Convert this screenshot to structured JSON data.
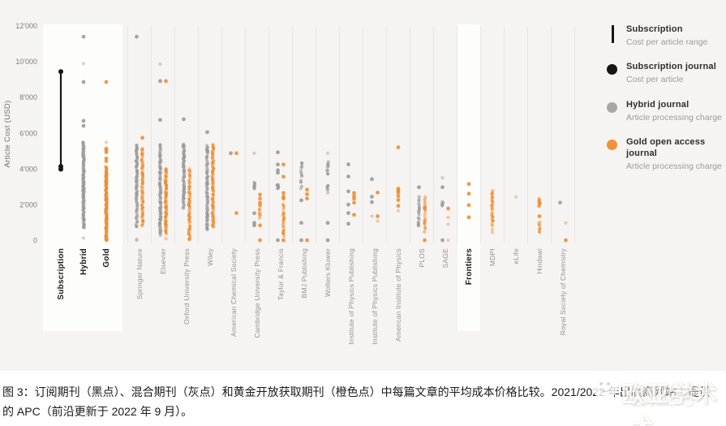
{
  "colors": {
    "background": "#f5f4f2",
    "band": "#fdfdfc",
    "gridline": "#e8e6e3",
    "black": "#151515",
    "gray": "#9b9896",
    "orange": "#ee8c2f",
    "axis_text": "#7c7c7c",
    "label_gray": "#95918e",
    "label_dark": "#1c1c1c"
  },
  "legend": {
    "items": [
      {
        "icon": "range-line",
        "title": "Subscription",
        "subtitle": "Cost per article range"
      },
      {
        "icon": "black-dot",
        "title": "Subscription journal",
        "subtitle": "Cost per article"
      },
      {
        "icon": "gray-dot",
        "title": "Hybrid journal",
        "subtitle": "Article processing charge"
      },
      {
        "icon": "orange-dot",
        "title": "Gold open access journal",
        "subtitle": "Article processing charge"
      }
    ]
  },
  "caption": {
    "line1": "图 3：订阅期刊（黑点）、混合期刊（灰点）和黄金开放获取期刊（橙色点）中每篇文章的平均成本价格比较。2021/2022 年出版商网站上提供",
    "line2": "的 APC（前沿更新于 2022 年 9 月）。"
  },
  "watermark": {
    "icon": "wechat-icon",
    "text": "欧亚学术"
  },
  "chart_data": {
    "type": "scatter",
    "title": "",
    "xlabel": "",
    "ylabel": "Article Cost (USD)",
    "ylim": [
      0,
      12000
    ],
    "y_ticks": [
      {
        "value": 12000,
        "label": "12'000"
      },
      {
        "value": 10000,
        "label": "10'000"
      },
      {
        "value": 8000,
        "label": "8'000"
      },
      {
        "value": 6000,
        "label": "6'000"
      },
      {
        "value": 4000,
        "label": "4'000"
      },
      {
        "value": 2000,
        "label": "2'000"
      },
      {
        "value": 0,
        "label": "0"
      }
    ],
    "grid": "vertical-separators-between-columns",
    "legend_position": "right",
    "highlighted_columns": [
      "Subscription",
      "Hybrid",
      "Gold",
      "Frontiers"
    ],
    "columns": [
      {
        "label": "Subscription",
        "bold": true,
        "in_band": true,
        "series": [
          {
            "color": "black",
            "range": [
              4000,
              9450
            ],
            "dots": [
              9450,
              4150,
              4000
            ]
          }
        ]
      },
      {
        "label": "Hybrid",
        "bold": true,
        "in_band": true,
        "series": [
          {
            "color": "gray",
            "dots": [
              11400,
              8870,
              6700,
              6420
            ],
            "faint_dots": [
              9900,
              150
            ],
            "strips": [
              {
                "from": 700,
                "to": 5480,
                "n": 90
              }
            ]
          }
        ]
      },
      {
        "label": "Gold",
        "bold": true,
        "in_band": true,
        "series": [
          {
            "color": "orange",
            "dots": [
              8870,
              5150,
              5080,
              4950,
              4600,
              4450
            ],
            "faint_dots": [
              5500
            ],
            "strips": [
              {
                "from": 30,
                "to": 4100,
                "n": 100
              }
            ]
          }
        ]
      },
      {
        "label": "Springer Nature",
        "series": [
          {
            "color": "gray",
            "dots": [
              11400
            ],
            "faint_dots": [
              80,
              30
            ],
            "strips": [
              {
                "from": 770,
                "to": 5300,
                "n": 55
              }
            ]
          },
          {
            "color": "orange",
            "dots": [
              5750
            ],
            "strips": [
              {
                "from": 860,
                "to": 5160,
                "n": 42
              }
            ]
          }
        ]
      },
      {
        "label": "Elsevier",
        "series": [
          {
            "color": "gray",
            "dots": [
              8920,
              6750
            ],
            "faint_dots": [
              9870
            ],
            "strips": [
              {
                "from": 320,
                "to": 5390,
                "n": 65
              }
            ]
          },
          {
            "color": "orange",
            "dots": [
              8920
            ],
            "faint_dots": [
              120
            ],
            "strips": [
              {
                "from": 410,
                "to": 4030,
                "n": 50
              }
            ]
          }
        ]
      },
      {
        "label": "Oxford University Press",
        "series": [
          {
            "color": "gray",
            "dots": [
              6790
            ],
            "strips": [
              {
                "from": 1810,
                "to": 5430,
                "n": 48
              }
            ]
          },
          {
            "color": "orange",
            "dots": [
              90
            ],
            "strips": [
              {
                "from": 230,
                "to": 4030,
                "n": 42
              }
            ]
          }
        ]
      },
      {
        "label": "Wiley",
        "series": [
          {
            "color": "gray",
            "dots": [
              6070
            ],
            "strips": [
              {
                "from": 630,
                "to": 5300,
                "n": 60
              }
            ]
          },
          {
            "color": "orange",
            "dots": [],
            "strips": [
              {
                "from": 770,
                "to": 5340,
                "n": 55
              }
            ]
          }
        ]
      },
      {
        "label": "American Chemical Society",
        "series": [
          {
            "color": "gray",
            "dots": [
              4890
            ]
          },
          {
            "color": "orange",
            "dots": [
              4890,
              1550
            ]
          }
        ]
      },
      {
        "label": "Cambridge University Press",
        "series": [
          {
            "color": "gray",
            "dots": [
              1540,
              1000,
              860
            ],
            "faint_dots": [
              4890
            ],
            "strips": [
              {
                "from": 2900,
                "to": 3260,
                "n": 8
              }
            ]
          },
          {
            "color": "orange",
            "dots": [
              2580,
              2360,
              2130,
              1990,
              860,
              30
            ],
            "strips": [
              {
                "from": 1310,
                "to": 1770,
                "n": 6
              }
            ]
          }
        ]
      },
      {
        "label": "Taylor & Francis",
        "series": [
          {
            "color": "gray",
            "dots": [
              4940,
              4260,
              3940,
              3800,
              30
            ],
            "strips": [
              {
                "from": 2900,
                "to": 3170,
                "n": 5
              }
            ]
          },
          {
            "color": "orange",
            "dots": [
              4260,
              3580,
              2670,
              2460,
              2360,
              30
            ],
            "strips": [
              {
                "from": 230,
                "to": 1990,
                "n": 16
              }
            ]
          }
        ]
      },
      {
        "label": "BMJ Publishing",
        "series": [
          {
            "color": "gray",
            "dots": [
              2260,
              1000,
              30
            ],
            "strips": [
              {
                "from": 3710,
                "to": 4390,
                "n": 7
              },
              {
                "from": 2900,
                "to": 3580,
                "n": 5
              }
            ]
          },
          {
            "color": "orange",
            "dots": [
              2850,
              2600,
              2360,
              30
            ]
          }
        ]
      },
      {
        "label": "Wolters Kluwer",
        "series": [
          {
            "color": "gray",
            "dots": [
              1000,
              30
            ],
            "faint_dots": [
              4890
            ],
            "strips": [
              {
                "from": 3760,
                "to": 4390,
                "n": 7
              },
              {
                "from": 2720,
                "to": 3120,
                "n": 5
              }
            ]
          }
        ]
      },
      {
        "label": "Institute of Physics Publishing",
        "series": [
          {
            "color": "gray",
            "dots": [
              4270,
              3590,
              2760,
              2020,
              1550,
              950
            ]
          },
          {
            "color": "orange",
            "dots": [
              2670,
              2500,
              2360,
              2130,
              1450
            ]
          }
        ]
      },
      {
        "label": "Institute of Physics Publishing",
        "series": [
          {
            "color": "gray",
            "dots": [
              3440,
              2460,
              2160
            ],
            "faint_dots": [
              1370
            ]
          },
          {
            "color": "orange",
            "dots": [
              2690,
              1370
            ],
            "faint_dots": [
              1100
            ]
          }
        ]
      },
      {
        "label": "American Institute of Physics",
        "series": [
          {
            "color": "orange",
            "dots": [
              5220,
              2910,
              2800,
              2690,
              2500,
              2280,
              1950
            ],
            "faint_dots": [
              1680
            ]
          }
        ]
      },
      {
        "label": "PLOS",
        "series": [
          {
            "color": "gray",
            "dots": [
              2990
            ],
            "strips": [
              {
                "from": 800,
                "to": 2430,
                "n": 14
              }
            ]
          },
          {
            "color": "orange",
            "dots": [
              1825,
              30
            ],
            "strips": [
              {
                "from": 500,
                "to": 2430,
                "n": 14
              }
            ]
          }
        ]
      },
      {
        "label": "SAGE",
        "series": [
          {
            "color": "gray",
            "dots": [
              2990,
              30
            ],
            "faint_dots": [
              3520
            ],
            "strips": [
              {
                "from": 1990,
                "to": 2220,
                "n": 4
              }
            ]
          },
          {
            "color": "orange",
            "dots": [
              1800
            ],
            "faint_dots": [
              1300,
              920,
              30
            ]
          }
        ]
      },
      {
        "label": "Frontiers",
        "bold": true,
        "in_band": true,
        "series": [
          {
            "color": "orange",
            "dots": [
              3170,
              2630,
              1990,
              1310
            ]
          }
        ]
      },
      {
        "label": "MDPI",
        "series": [
          {
            "color": "orange",
            "faint_dots": [
              630,
              470
            ],
            "strips": [
              {
                "from": 860,
                "to": 2810,
                "n": 20
              }
            ]
          }
        ]
      },
      {
        "label": "eLife",
        "series": [
          {
            "color": "orange",
            "faint_dots": [
              2450
            ]
          }
        ]
      },
      {
        "label": "Hindawi",
        "series": [
          {
            "color": "orange",
            "dots": [
              1370
            ],
            "strips": [
              {
                "from": 1950,
                "to": 2350,
                "n": 8
              },
              {
                "from": 470,
                "to": 1070,
                "n": 6
              }
            ]
          }
        ]
      },
      {
        "label": "Royal Society of Chemistry",
        "series": [
          {
            "color": "gray",
            "dots": [
              2130
            ]
          },
          {
            "color": "orange",
            "dots": [
              30
            ],
            "faint_dots": [
              1000
            ]
          }
        ]
      }
    ]
  }
}
